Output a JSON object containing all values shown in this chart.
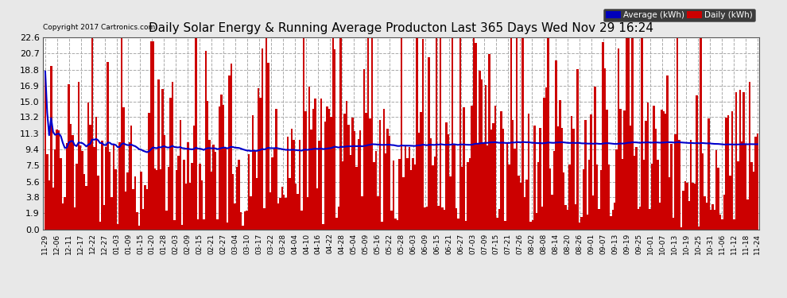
{
  "title": "Daily Solar Energy & Running Average Producton Last 365 Days Wed Nov 29 16:24",
  "title_fontsize": 11,
  "copyright_text": "Copyright 2017 Cartronics.com",
  "legend_labels": [
    "Average (kWh)",
    "Daily (kWh)"
  ],
  "legend_bg_colors": [
    "#0000bb",
    "#cc0000"
  ],
  "yticks": [
    0.0,
    1.9,
    3.8,
    5.6,
    7.5,
    9.4,
    11.3,
    13.2,
    15.0,
    16.9,
    18.8,
    20.7,
    22.6
  ],
  "ylim": [
    0,
    22.6
  ],
  "bg_color": "#e8e8e8",
  "plot_bg_color": "#ffffff",
  "grid_color": "#aaaaaa",
  "bar_color": "#cc0000",
  "avg_line_color": "#0000cc",
  "n_days": 365,
  "xtick_labels": [
    "11-29",
    "12-06",
    "12-11",
    "12-17",
    "12-22",
    "12-27",
    "01-03",
    "01-09",
    "01-15",
    "01-20",
    "01-28",
    "02-03",
    "02-09",
    "02-15",
    "02-21",
    "02-27",
    "03-04",
    "03-10",
    "03-17",
    "03-22",
    "03-28",
    "04-04",
    "04-10",
    "04-16",
    "04-22",
    "04-28",
    "05-04",
    "05-09",
    "05-16",
    "05-22",
    "05-28",
    "06-03",
    "06-09",
    "06-15",
    "06-21",
    "06-27",
    "07-03",
    "07-09",
    "07-15",
    "07-21",
    "07-26",
    "08-02",
    "08-08",
    "08-14",
    "08-20",
    "08-26",
    "09-01",
    "09-07",
    "09-13",
    "09-19",
    "09-25",
    "10-01",
    "10-07",
    "10-13",
    "10-19",
    "10-25",
    "10-31",
    "11-06",
    "11-12",
    "11-18",
    "11-24"
  ]
}
